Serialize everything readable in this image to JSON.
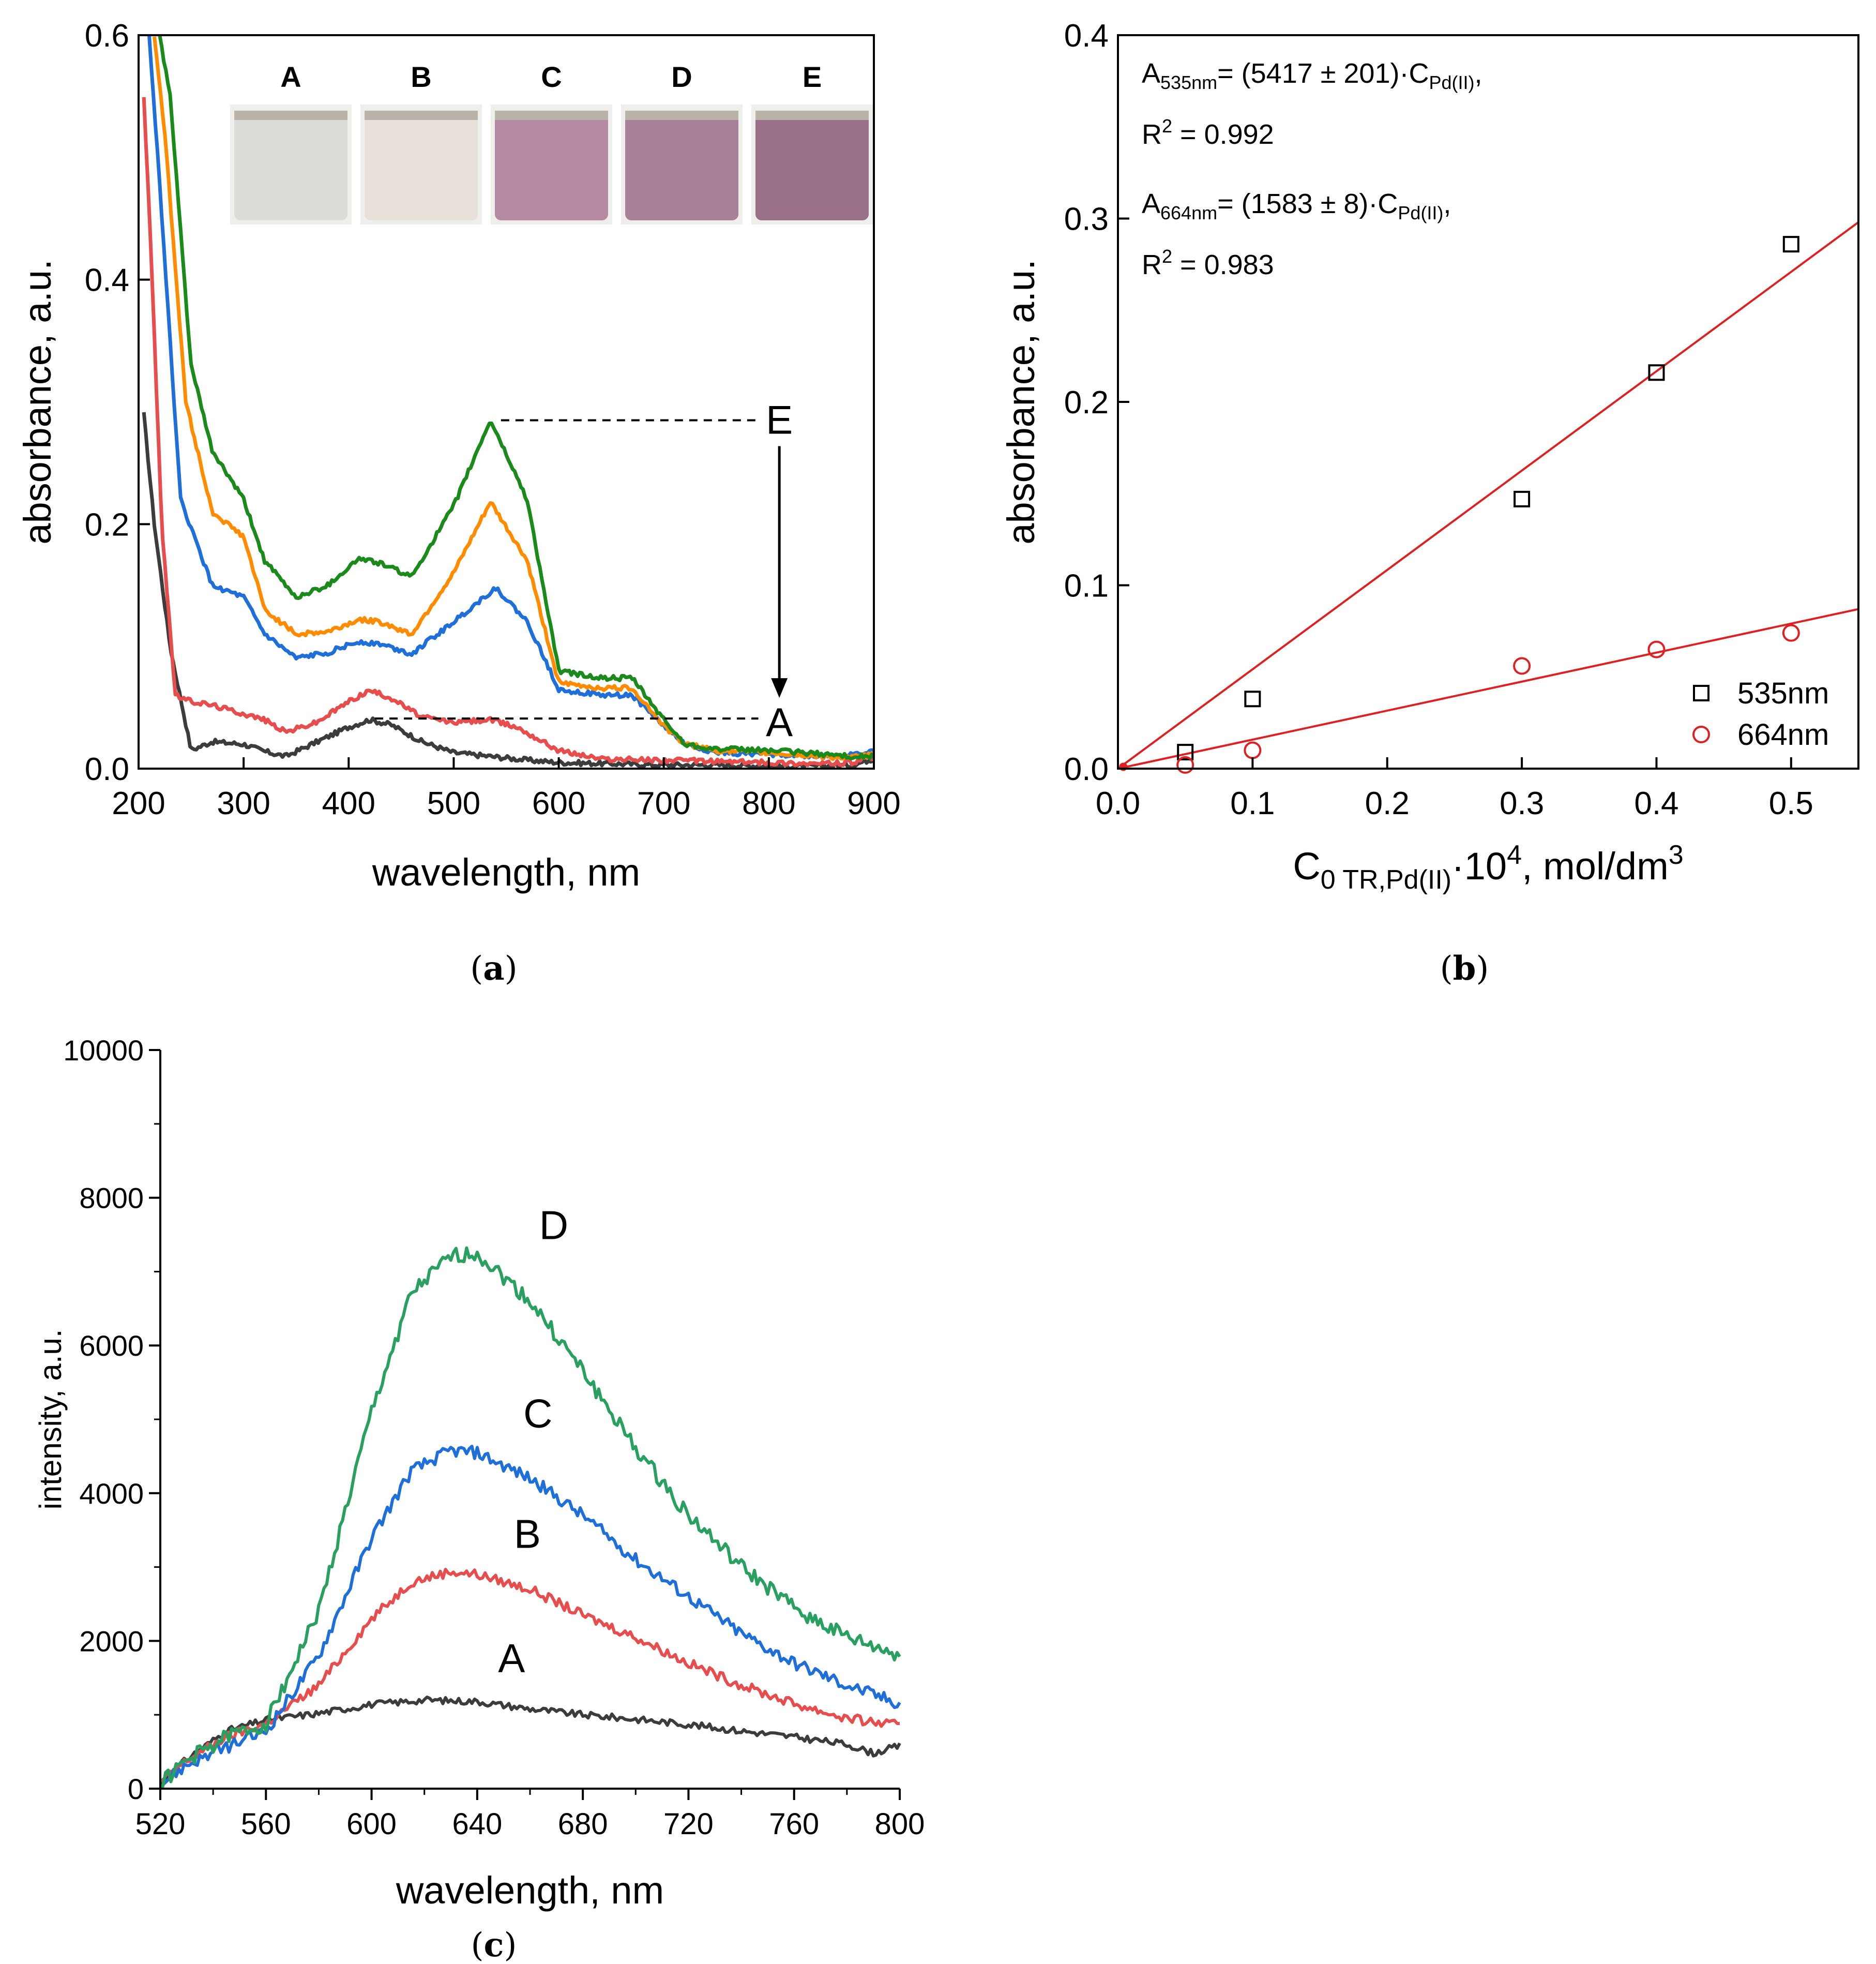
{
  "chart_data": [
    {
      "id": "a",
      "type": "line",
      "panel_label": "a",
      "xlabel": "wavelength, nm",
      "ylabel": "absorbance, a.u.",
      "xlim": [
        200,
        900
      ],
      "ylim": [
        0,
        0.6
      ],
      "xticks": [
        200,
        300,
        400,
        500,
        600,
        700,
        800,
        900
      ],
      "yticks": [
        0.0,
        0.2,
        0.4,
        0.6
      ],
      "ytick_labels": [
        "0.0",
        "0.2",
        "0.4",
        "0.6"
      ],
      "grid": false,
      "series": [
        {
          "name": "A",
          "color": "#3c3c3c",
          "x": [
            205,
            215,
            230,
            250,
            270,
            300,
            320,
            340,
            370,
            400,
            420,
            440,
            470,
            500,
            535,
            570,
            600,
            650,
            700,
            750,
            800,
            850,
            880,
            895,
            900
          ],
          "y": [
            0.29,
            0.2,
            0.1,
            0.015,
            0.022,
            0.02,
            0.014,
            0.01,
            0.022,
            0.034,
            0.04,
            0.036,
            0.022,
            0.013,
            0.01,
            0.007,
            0.005,
            0.004,
            0.003,
            0.003,
            0.002,
            0.002,
            0.003,
            0.007,
            0.008
          ]
        },
        {
          "name": "B",
          "color": "#e84d4d",
          "x": [
            205,
            212,
            222,
            235,
            250,
            270,
            300,
            320,
            340,
            370,
            400,
            420,
            440,
            470,
            500,
            535,
            560,
            600,
            640,
            700,
            750,
            800,
            850,
            880,
            900
          ],
          "y": [
            0.55,
            0.42,
            0.2,
            0.06,
            0.055,
            0.052,
            0.045,
            0.04,
            0.03,
            0.038,
            0.055,
            0.064,
            0.058,
            0.042,
            0.038,
            0.04,
            0.034,
            0.015,
            0.008,
            0.007,
            0.006,
            0.005,
            0.004,
            0.005,
            0.009
          ]
        },
        {
          "name": "C",
          "color": "#1e6fd9",
          "x": [
            210,
            220,
            240,
            270,
            300,
            320,
            350,
            380,
            410,
            430,
            460,
            500,
            540,
            570,
            600,
            640,
            670,
            700,
            720,
            750,
            800,
            850,
            880,
            900
          ],
          "y": [
            0.6,
            0.48,
            0.22,
            0.15,
            0.14,
            0.11,
            0.09,
            0.095,
            0.104,
            0.102,
            0.094,
            0.12,
            0.148,
            0.12,
            0.065,
            0.06,
            0.06,
            0.035,
            0.02,
            0.013,
            0.012,
            0.01,
            0.011,
            0.014
          ]
        },
        {
          "name": "D",
          "color": "#ff8c00",
          "x": [
            215,
            225,
            245,
            270,
            300,
            320,
            350,
            380,
            410,
            430,
            460,
            500,
            535,
            570,
            600,
            640,
            670,
            700,
            720,
            750,
            800,
            850,
            880,
            900
          ],
          "y": [
            0.6,
            0.52,
            0.3,
            0.21,
            0.19,
            0.13,
            0.11,
            0.112,
            0.122,
            0.12,
            0.11,
            0.16,
            0.218,
            0.17,
            0.07,
            0.066,
            0.066,
            0.035,
            0.02,
            0.015,
            0.013,
            0.01,
            0.009,
            0.012
          ]
        },
        {
          "name": "E",
          "color": "#1a8a1a",
          "x": [
            220,
            230,
            250,
            270,
            300,
            320,
            350,
            380,
            410,
            430,
            460,
            500,
            535,
            570,
            600,
            640,
            670,
            700,
            720,
            750,
            800,
            850,
            880,
            900
          ],
          "y": [
            0.6,
            0.55,
            0.33,
            0.26,
            0.22,
            0.17,
            0.14,
            0.15,
            0.172,
            0.168,
            0.157,
            0.215,
            0.285,
            0.22,
            0.08,
            0.074,
            0.074,
            0.04,
            0.02,
            0.016,
            0.015,
            0.012,
            0.01,
            0.01
          ]
        }
      ],
      "annotations": {
        "upper_label": "E",
        "lower_label": "A",
        "upper_level": 0.285,
        "lower_level": 0.041
      },
      "inset": {
        "vials": [
          {
            "label": "A",
            "color": "#dcdcd8"
          },
          {
            "label": "B",
            "color": "#e6e0d8"
          },
          {
            "label": "C",
            "color": "#b58aa0"
          },
          {
            "label": "D",
            "color": "#a88098"
          },
          {
            "label": "E",
            "color": "#9a7088"
          }
        ]
      }
    },
    {
      "id": "b",
      "type": "scatter",
      "panel_label": "b",
      "xlabel_main": "C",
      "xlabel_sub": "0 TR,Pd(II)",
      "xlabel_mid": "·10",
      "xlabel_sup": "4",
      "xlabel_tail": ", mol/dm",
      "xlabel_sup2": "3",
      "ylabel": "absorbance, a.u.",
      "xlim": [
        0,
        0.55
      ],
      "ylim": [
        0,
        0.4
      ],
      "xticks": [
        0.0,
        0.1,
        0.2,
        0.3,
        0.4,
        0.5
      ],
      "xtick_labels": [
        "0.0",
        "0.1",
        "0.2",
        "0.3",
        "0.4",
        "0.5"
      ],
      "yticks": [
        0.0,
        0.1,
        0.2,
        0.3,
        0.4
      ],
      "ytick_labels": [
        "0.0",
        "0.1",
        "0.2",
        "0.3",
        "0.4"
      ],
      "grid": false,
      "fit_color": "#e02020",
      "series": [
        {
          "name": "535nm",
          "marker": "square",
          "color": "#000000",
          "x": [
            0.05,
            0.1,
            0.3,
            0.4,
            0.5
          ],
          "y": [
            0.009,
            0.038,
            0.147,
            0.216,
            0.286
          ],
          "fit": {
            "x0": 0,
            "y0": 0,
            "x1": 0.55,
            "y1": 0.298
          }
        },
        {
          "name": "664nm",
          "marker": "circle",
          "color": "#e02020",
          "x": [
            0.05,
            0.1,
            0.3,
            0.4,
            0.5
          ],
          "y": [
            0.002,
            0.01,
            0.056,
            0.065,
            0.074
          ],
          "fit": {
            "x0": 0,
            "y0": 0,
            "x1": 0.55,
            "y1": 0.087
          }
        }
      ],
      "legend_position": "bottom-right",
      "equations": [
        {
          "lhs": "A",
          "lhs_sub": "535nm",
          "rhs": "= (5417 ± 201)·C",
          "rhs_sub": "Pd(II)",
          "tail": ",",
          "r2_label": "R",
          "r2_sup": "2",
          "r2_value": " = 0.992"
        },
        {
          "lhs": "A",
          "lhs_sub": "664nm",
          "rhs": "= (1583 ± 8)·C",
          "rhs_sub": "Pd(II)",
          "tail": ",",
          "r2_label": "R",
          "r2_sup": "2",
          "r2_value": " = 0.983"
        }
      ]
    },
    {
      "id": "c",
      "type": "line",
      "panel_label": "c",
      "xlabel": "wavelength, nm",
      "ylabel": "intensity, a.u.",
      "xlim": [
        520,
        800
      ],
      "ylim": [
        0,
        10000
      ],
      "xticks": [
        520,
        560,
        600,
        640,
        680,
        720,
        760,
        800
      ],
      "yticks": [
        0,
        2000,
        4000,
        6000,
        8000,
        10000
      ],
      "ytick_labels": [
        "0",
        "2000",
        "4000",
        "6000",
        "8000",
        "10000"
      ],
      "grid": false,
      "series": [
        {
          "name": "A",
          "color": "#3c3c3c",
          "label_at": [
            653,
            1580
          ],
          "x": [
            520,
            530,
            545,
            560,
            580,
            600,
            620,
            640,
            660,
            680,
            700,
            720,
            740,
            760,
            780,
            790,
            800
          ],
          "y": [
            80,
            400,
            780,
            930,
            1020,
            1140,
            1200,
            1180,
            1080,
            1000,
            940,
            870,
            780,
            700,
            600,
            480,
            580
          ]
        },
        {
          "name": "B",
          "color": "#e84d4d",
          "label_at": [
            659,
            3260
          ],
          "x": [
            520,
            530,
            545,
            560,
            580,
            600,
            615,
            630,
            640,
            660,
            680,
            700,
            720,
            740,
            760,
            780,
            800
          ],
          "y": [
            80,
            380,
            700,
            880,
            1400,
            2300,
            2800,
            2940,
            2900,
            2700,
            2350,
            2050,
            1700,
            1400,
            1150,
            950,
            850
          ]
        },
        {
          "name": "C",
          "color": "#1e6fd9",
          "label_at": [
            663,
            4890
          ],
          "x": [
            520,
            530,
            545,
            560,
            580,
            600,
            615,
            630,
            640,
            660,
            680,
            700,
            720,
            740,
            760,
            780,
            800
          ],
          "y": [
            60,
            320,
            560,
            780,
            1800,
            3400,
            4300,
            4580,
            4550,
            4200,
            3700,
            3100,
            2600,
            2100,
            1700,
            1400,
            1150
          ]
        },
        {
          "name": "D",
          "color": "#2aa060",
          "label_at": [
            669,
            7440
          ],
          "x": [
            520,
            530,
            545,
            560,
            580,
            600,
            615,
            630,
            640,
            660,
            680,
            700,
            720,
            740,
            760,
            780,
            800
          ],
          "y": [
            70,
            380,
            700,
            880,
            2400,
            5100,
            6700,
            7200,
            7250,
            6600,
            5650,
            4600,
            3700,
            3000,
            2450,
            2050,
            1800
          ]
        }
      ]
    }
  ]
}
